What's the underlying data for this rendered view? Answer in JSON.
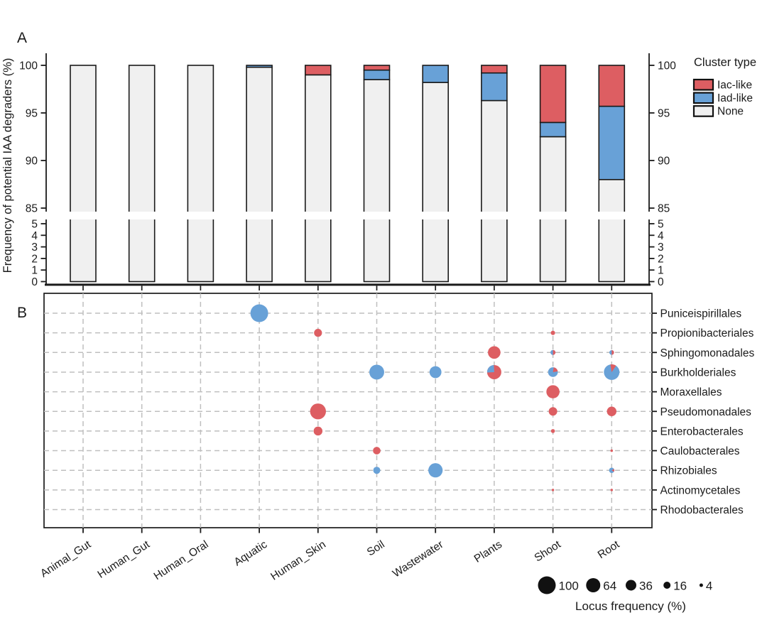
{
  "colors": {
    "iac": "#DD5E62",
    "iad": "#68A1D7",
    "none": "#F0F0F0",
    "axis": "#1A1A1A",
    "grid": "#BFBFBF",
    "highlight": "#E8212B"
  },
  "chart_data": [
    {
      "type": "bar",
      "stacked": true,
      "panel_label": "A",
      "ylabel": "Frequency of potential IAA degraders (%)",
      "categories": [
        "Animal_Gut",
        "Human_Gut",
        "Human_Oral",
        "Aquatic",
        "Human_Skin",
        "Soil",
        "Wastewater",
        "Plants",
        "Shoot",
        "Root"
      ],
      "highlighted_categories": [
        "Shoot",
        "Root"
      ],
      "axis_break": {
        "upper_range": [
          85,
          100
        ],
        "lower_range": [
          0,
          5
        ]
      },
      "upper_ticks": [
        100,
        95,
        90,
        85
      ],
      "lower_ticks": [
        5,
        4,
        3,
        2,
        1,
        0
      ],
      "series": [
        {
          "name": "Iac-like",
          "key": "iac",
          "values": [
            0,
            0,
            0,
            0,
            1.0,
            0.5,
            0,
            0.8,
            6.0,
            4.3
          ]
        },
        {
          "name": "Iad-like",
          "key": "iad",
          "values": [
            0,
            0,
            0,
            0.2,
            0,
            1.0,
            1.8,
            2.9,
            1.5,
            7.7
          ]
        },
        {
          "name": "None",
          "key": "none",
          "values": [
            100,
            100,
            100,
            99.8,
            99.0,
            98.5,
            98.2,
            96.3,
            92.5,
            88.0
          ]
        }
      ],
      "legend": {
        "title": "Cluster type",
        "items": [
          {
            "label": "Iac-like",
            "key": "iac"
          },
          {
            "label": "Iad-like",
            "key": "iad"
          },
          {
            "label": "None",
            "key": "none"
          }
        ]
      }
    },
    {
      "type": "bubble",
      "panel_label": "B",
      "rows": [
        "Puniceispirillales",
        "Propionibacteriales",
        "Sphingomonadales",
        "Burkholderiales",
        "Moraxellales",
        "Pseudomonadales",
        "Enterobacterales",
        "Caulobacterales",
        "Rhizobiales",
        "Actinomycetales",
        "Rhodobacterales"
      ],
      "columns": [
        "Animal_Gut",
        "Human_Gut",
        "Human_Oral",
        "Aquatic",
        "Human_Skin",
        "Soil",
        "Wastewater",
        "Plants",
        "Shoot",
        "Root"
      ],
      "highlighted_columns": [
        "Shoot",
        "Root"
      ],
      "size_legend": {
        "values": [
          100,
          64,
          36,
          16,
          4
        ],
        "title": "Locus frequency (%)"
      },
      "points": [
        {
          "column": "Aquatic",
          "row": "Puniceispirillales",
          "value": 100,
          "cluster": "iad"
        },
        {
          "column": "Human_Skin",
          "row": "Propionibacteriales",
          "value": 20,
          "cluster": "iac"
        },
        {
          "column": "Human_Skin",
          "row": "Pseudomonadales",
          "value": 80,
          "cluster": "iac"
        },
        {
          "column": "Human_Skin",
          "row": "Enterobacterales",
          "value": 25,
          "cluster": "iac"
        },
        {
          "column": "Soil",
          "row": "Burkholderiales",
          "value": 70,
          "cluster": "iad"
        },
        {
          "column": "Soil",
          "row": "Caulobacterales",
          "value": 18,
          "cluster": "iac"
        },
        {
          "column": "Soil",
          "row": "Rhizobiales",
          "value": 16,
          "cluster": "iad"
        },
        {
          "column": "Wastewater",
          "row": "Burkholderiales",
          "value": 45,
          "cluster": "iad"
        },
        {
          "column": "Wastewater",
          "row": "Rhizobiales",
          "value": 65,
          "cluster": "iad"
        },
        {
          "column": "Plants",
          "row": "Sphingomonadales",
          "value": 50,
          "cluster": "iac"
        },
        {
          "column": "Plants",
          "row": "Burkholderiales",
          "value": 64,
          "cluster": "mixed",
          "mix": {
            "iac": 0.75,
            "iad": 0.25
          },
          "minor": "iad",
          "minor_at": "upper-left"
        },
        {
          "column": "Shoot",
          "row": "Propionibacteriales",
          "value": 6,
          "cluster": "iac"
        },
        {
          "column": "Shoot",
          "row": "Sphingomonadales",
          "value": 8,
          "cluster": "mixed",
          "mix": {
            "iad": 0.5,
            "iac": 0.5
          },
          "minor": "iac",
          "minor_at": "right"
        },
        {
          "column": "Shoot",
          "row": "Burkholderiales",
          "value": 30,
          "cluster": "mixed",
          "mix": {
            "iad": 0.8,
            "iac": 0.2
          },
          "minor": "iac",
          "minor_at": "upper-right"
        },
        {
          "column": "Shoot",
          "row": "Moraxellales",
          "value": 55,
          "cluster": "iac"
        },
        {
          "column": "Shoot",
          "row": "Pseudomonadales",
          "value": 23,
          "cluster": "iac"
        },
        {
          "column": "Shoot",
          "row": "Enterobacterales",
          "value": 5,
          "cluster": "iac"
        },
        {
          "column": "Shoot",
          "row": "Actinomycetales",
          "value": 2,
          "cluster": "iac"
        },
        {
          "column": "Root",
          "row": "Sphingomonadales",
          "value": 7,
          "cluster": "mixed",
          "mix": {
            "iad": 0.5,
            "iac": 0.5
          },
          "minor": "iac",
          "minor_at": "right"
        },
        {
          "column": "Root",
          "row": "Burkholderiales",
          "value": 77,
          "cluster": "mixed",
          "mix": {
            "iad": 0.88,
            "iac": 0.12
          },
          "minor": "iac",
          "minor_at": "top"
        },
        {
          "column": "Root",
          "row": "Pseudomonadales",
          "value": 29,
          "cluster": "iac"
        },
        {
          "column": "Root",
          "row": "Caulobacterales",
          "value": 2,
          "cluster": "iac"
        },
        {
          "column": "Root",
          "row": "Rhizobiales",
          "value": 9,
          "cluster": "mixed",
          "mix": {
            "iad": 0.82,
            "iac": 0.18
          },
          "minor": "iac",
          "minor_at": "right"
        },
        {
          "column": "Root",
          "row": "Actinomycetales",
          "value": 2,
          "cluster": "iac"
        }
      ]
    }
  ]
}
